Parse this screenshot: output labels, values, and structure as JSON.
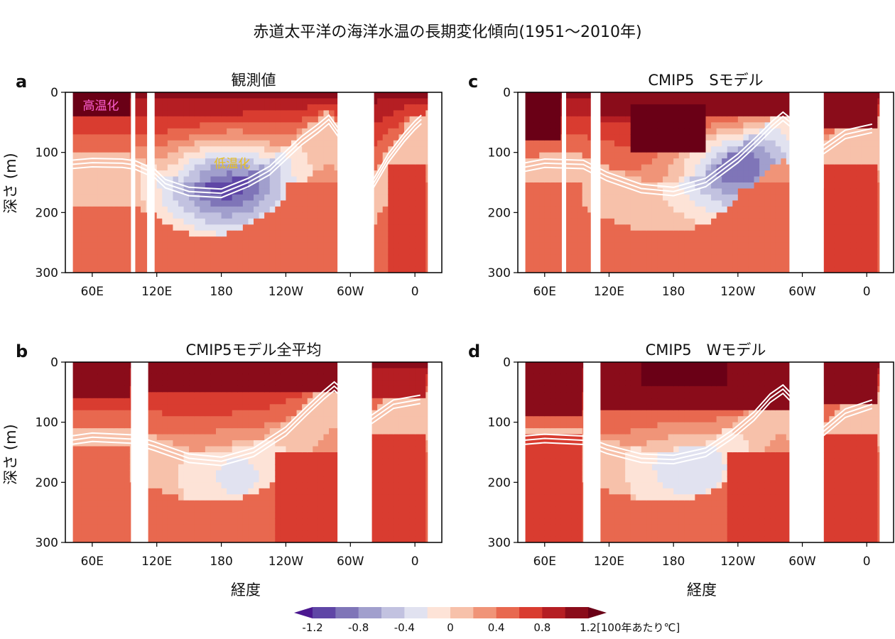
{
  "figure": {
    "title": "赤道太平洋の海洋水温の長期変化傾向(1951〜2010年)",
    "xlabel": "経度",
    "ylabel": "深さ (m)"
  },
  "chart_data": {
    "type": "heatmap",
    "x_ticks": [
      "60E",
      "120E",
      "180",
      "120W",
      "60W",
      "0"
    ],
    "x_tick_positions_lon": [
      60,
      120,
      180,
      240,
      300,
      360
    ],
    "xlim": [
      35,
      385
    ],
    "y_ticks": [
      0,
      100,
      200,
      300
    ],
    "ylim": [
      0,
      300
    ],
    "y_inverted": true,
    "colorbar": {
      "unit": "[100年あたり℃]",
      "tick_labels": [
        "-1.2",
        "-0.8",
        "-0.4",
        "0",
        "0.4",
        "0.8",
        "1.2"
      ],
      "tick_values": [
        -1.2,
        -0.8,
        -0.4,
        0,
        0.4,
        0.8,
        1.2
      ],
      "boundaries": [
        -1.4,
        -1.2,
        -1.0,
        -0.8,
        -0.6,
        -0.4,
        -0.2,
        0.0,
        0.2,
        0.4,
        0.6,
        0.8,
        1.0,
        1.2,
        1.4
      ],
      "colors": [
        "#4b1890",
        "#5f46a6",
        "#7f75b8",
        "#a19fcd",
        "#c2c2e0",
        "#e1e2f0",
        "#fde3d7",
        "#f7c1aa",
        "#f09478",
        "#e8684f",
        "#d93c30",
        "#b51e23",
        "#8a0c1a",
        "#6a0016"
      ],
      "extend": "both"
    },
    "panels": [
      {
        "letter": "a",
        "title": "観測値",
        "annotations": [
          {
            "text": "高温化",
            "lon": 68,
            "depth": 22,
            "color": "#ff5fd2"
          },
          {
            "text": "低温化",
            "lon": 190,
            "depth": 118,
            "color": "#e8c11e"
          }
        ],
        "land": [
          [
            96,
            100
          ],
          [
            111,
            118
          ],
          [
            288,
            322
          ]
        ],
        "thermocline": [
          [
            40,
            120
          ],
          [
            60,
            117
          ],
          [
            88,
            118
          ],
          [
            100,
            121
          ],
          [
            118,
            135
          ],
          [
            128,
            152
          ],
          [
            150,
            165
          ],
          [
            180,
            168
          ],
          [
            205,
            150
          ],
          [
            225,
            130
          ],
          [
            240,
            105
          ],
          [
            255,
            80
          ],
          [
            270,
            60
          ],
          [
            280,
            45
          ],
          [
            322,
            150
          ],
          [
            335,
            110
          ],
          [
            350,
            75
          ],
          [
            360,
            55
          ],
          [
            366,
            45
          ]
        ],
        "warm_cells": [
          {
            "lon0": 40,
            "lon1": 96,
            "d0": 0,
            "d1": 40,
            "v": 1.2
          },
          {
            "lon0": 118,
            "lon1": 200,
            "d0": 0,
            "d1": 35,
            "v": 0.9
          },
          {
            "lon0": 200,
            "lon1": 288,
            "d0": 0,
            "d1": 25,
            "v": 0.5
          },
          {
            "lon0": 322,
            "lon1": 370,
            "d0": 0,
            "d1": 40,
            "v": 0.7
          },
          {
            "lon0": 240,
            "lon1": 288,
            "d0": 150,
            "d1": 300,
            "v": 0.5
          },
          {
            "lon0": 335,
            "lon1": 370,
            "d0": 120,
            "d1": 300,
            "v": 0.6
          }
        ],
        "cold_core": {
          "lon": 185,
          "depth": 150,
          "value": -1.3
        }
      },
      {
        "letter": "b",
        "title": "CMIP5モデル全平均",
        "annotations": [],
        "land": [
          [
            96,
            112
          ],
          [
            288,
            320
          ]
        ],
        "thermocline": [
          [
            40,
            130
          ],
          [
            60,
            125
          ],
          [
            96,
            128
          ],
          [
            118,
            140
          ],
          [
            150,
            160
          ],
          [
            180,
            165
          ],
          [
            210,
            150
          ],
          [
            240,
            115
          ],
          [
            260,
            80
          ],
          [
            275,
            55
          ],
          [
            285,
            40
          ],
          [
            320,
            95
          ],
          [
            340,
            70
          ],
          [
            365,
            62
          ]
        ],
        "warm_cells": [
          {
            "lon0": 40,
            "lon1": 96,
            "d0": 0,
            "d1": 60,
            "v": 1.1
          },
          {
            "lon0": 112,
            "lon1": 288,
            "d0": 0,
            "d1": 45,
            "v": 1.1
          },
          {
            "lon0": 320,
            "lon1": 370,
            "d0": 0,
            "d1": 55,
            "v": 0.9
          },
          {
            "lon0": 40,
            "lon1": 96,
            "d0": 140,
            "d1": 300,
            "v": 0.5
          },
          {
            "lon0": 230,
            "lon1": 288,
            "d0": 150,
            "d1": 300,
            "v": 0.6
          },
          {
            "lon0": 320,
            "lon1": 370,
            "d0": 120,
            "d1": 300,
            "v": 0.6
          }
        ],
        "cold_core": {
          "lon": 195,
          "depth": 190,
          "value": -0.4
        }
      },
      {
        "letter": "c",
        "title": "CMIP5　Sモデル",
        "annotations": [],
        "land": [
          [
            76,
            80
          ],
          [
            103,
            112
          ],
          [
            288,
            320
          ]
        ],
        "thermocline": [
          [
            40,
            125
          ],
          [
            60,
            118
          ],
          [
            96,
            120
          ],
          [
            118,
            140
          ],
          [
            150,
            160
          ],
          [
            180,
            165
          ],
          [
            210,
            150
          ],
          [
            240,
            110
          ],
          [
            258,
            80
          ],
          [
            272,
            55
          ],
          [
            282,
            40
          ],
          [
            320,
            95
          ],
          [
            340,
            70
          ],
          [
            365,
            60
          ]
        ],
        "warm_cells": [
          {
            "lon0": 40,
            "lon1": 76,
            "d0": 0,
            "d1": 80,
            "v": 1.2
          },
          {
            "lon0": 140,
            "lon1": 210,
            "d0": 20,
            "d1": 100,
            "v": 1.3
          },
          {
            "lon0": 112,
            "lon1": 288,
            "d0": 0,
            "d1": 40,
            "v": 1.0
          },
          {
            "lon0": 320,
            "lon1": 370,
            "d0": 0,
            "d1": 60,
            "v": 1.0
          },
          {
            "lon0": 40,
            "lon1": 96,
            "d0": 150,
            "d1": 300,
            "v": 0.5
          },
          {
            "lon0": 240,
            "lon1": 288,
            "d0": 160,
            "d1": 300,
            "v": 0.5
          },
          {
            "lon0": 320,
            "lon1": 370,
            "d0": 120,
            "d1": 300,
            "v": 0.6
          }
        ],
        "cold_core": {
          "lon": 240,
          "depth": 125,
          "value": -1.1
        }
      },
      {
        "letter": "d",
        "title": "CMIP5　Wモデル",
        "annotations": [],
        "land": [
          [
            96,
            112
          ],
          [
            288,
            320
          ]
        ],
        "thermocline": [
          [
            40,
            130
          ],
          [
            60,
            127
          ],
          [
            96,
            130
          ],
          [
            118,
            145
          ],
          [
            150,
            160
          ],
          [
            180,
            162
          ],
          [
            210,
            150
          ],
          [
            235,
            120
          ],
          [
            255,
            90
          ],
          [
            270,
            60
          ],
          [
            282,
            45
          ],
          [
            320,
            115
          ],
          [
            340,
            85
          ],
          [
            365,
            70
          ]
        ],
        "warm_cells": [
          {
            "lon0": 40,
            "lon1": 96,
            "d0": 0,
            "d1": 90,
            "v": 1.1
          },
          {
            "lon0": 150,
            "lon1": 230,
            "d0": 0,
            "d1": 40,
            "v": 1.4
          },
          {
            "lon0": 112,
            "lon1": 288,
            "d0": 0,
            "d1": 80,
            "v": 1.0
          },
          {
            "lon0": 320,
            "lon1": 370,
            "d0": 0,
            "d1": 70,
            "v": 1.0
          },
          {
            "lon0": 40,
            "lon1": 96,
            "d0": 120,
            "d1": 300,
            "v": 0.7
          },
          {
            "lon0": 230,
            "lon1": 288,
            "d0": 150,
            "d1": 300,
            "v": 0.7
          },
          {
            "lon0": 320,
            "lon1": 370,
            "d0": 120,
            "d1": 300,
            "v": 0.7
          }
        ],
        "cold_core": {
          "lon": 195,
          "depth": 175,
          "value": -0.5
        }
      }
    ]
  }
}
